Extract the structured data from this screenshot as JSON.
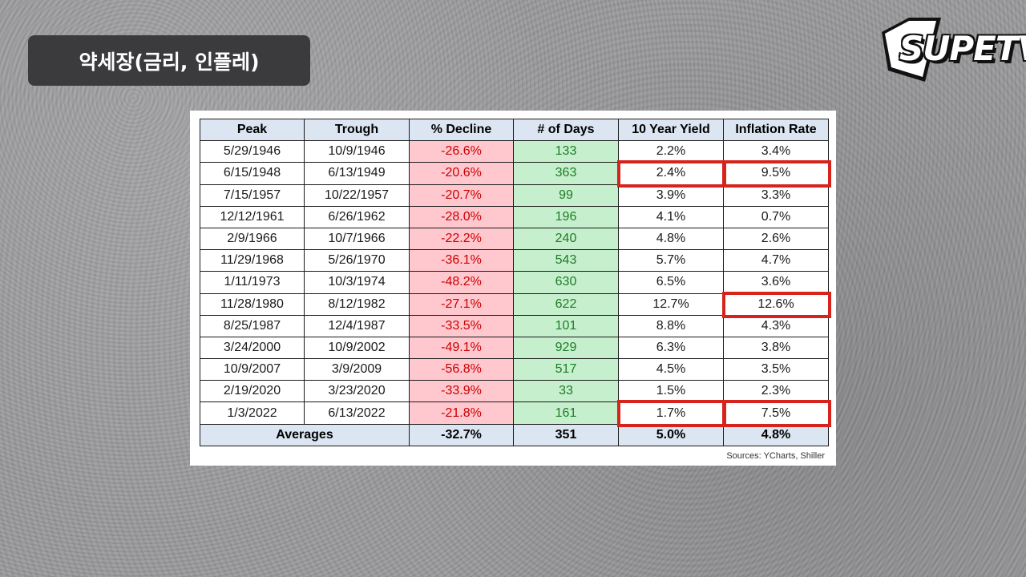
{
  "title": "약세장(금리, 인플레)",
  "logo": {
    "text": "SUPETV"
  },
  "table": {
    "headers": [
      "Peak",
      "Trough",
      "% Decline",
      "# of Days",
      "10 Year Yield",
      "Inflation Rate"
    ],
    "rows": [
      [
        "5/29/1946",
        "10/9/1946",
        "-26.6%",
        "133",
        "2.2%",
        "3.4%"
      ],
      [
        "6/15/1948",
        "6/13/1949",
        "-20.6%",
        "363",
        "2.4%",
        "9.5%"
      ],
      [
        "7/15/1957",
        "10/22/1957",
        "-20.7%",
        "99",
        "3.9%",
        "3.3%"
      ],
      [
        "12/12/1961",
        "6/26/1962",
        "-28.0%",
        "196",
        "4.1%",
        "0.7%"
      ],
      [
        "2/9/1966",
        "10/7/1966",
        "-22.2%",
        "240",
        "4.8%",
        "2.6%"
      ],
      [
        "11/29/1968",
        "5/26/1970",
        "-36.1%",
        "543",
        "5.7%",
        "4.7%"
      ],
      [
        "1/11/1973",
        "10/3/1974",
        "-48.2%",
        "630",
        "6.5%",
        "3.6%"
      ],
      [
        "11/28/1980",
        "8/12/1982",
        "-27.1%",
        "622",
        "12.7%",
        "12.6%"
      ],
      [
        "8/25/1987",
        "12/4/1987",
        "-33.5%",
        "101",
        "8.8%",
        "4.3%"
      ],
      [
        "3/24/2000",
        "10/9/2002",
        "-49.1%",
        "929",
        "6.3%",
        "3.8%"
      ],
      [
        "10/9/2007",
        "3/9/2009",
        "-56.8%",
        "517",
        "4.5%",
        "3.5%"
      ],
      [
        "2/19/2020",
        "3/23/2020",
        "-33.9%",
        "33",
        "1.5%",
        "2.3%"
      ],
      [
        "1/3/2022",
        "6/13/2022",
        "-21.8%",
        "161",
        "1.7%",
        "7.5%"
      ]
    ],
    "averages": {
      "label": "Averages",
      "decline": "-32.7%",
      "days": "351",
      "yield": "5.0%",
      "inflation": "4.8%"
    },
    "highlighted_cells": [
      [
        1,
        4
      ],
      [
        1,
        5
      ],
      [
        7,
        5
      ],
      [
        12,
        4
      ],
      [
        12,
        5
      ]
    ]
  },
  "source": "Sources: YCharts, Shiller",
  "colors": {
    "decline_bg": "#ffc7ce",
    "decline_text": "#cc0000",
    "days_bg": "#c6efce",
    "days_text": "#1e7b26",
    "header_bg": "#dce6f2",
    "highlight": "#d6231c"
  }
}
